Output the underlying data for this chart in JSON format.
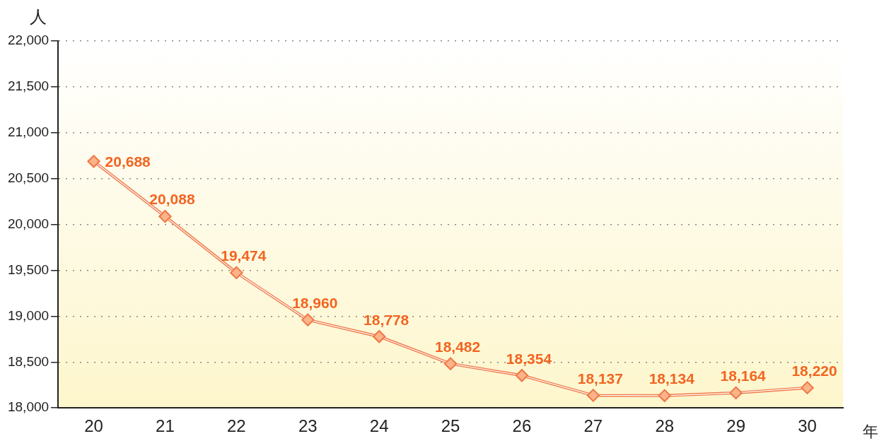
{
  "chart_data": {
    "type": "line",
    "ylabel": "人",
    "xlabel": "年",
    "categories": [
      "20",
      "21",
      "22",
      "23",
      "24",
      "25",
      "26",
      "27",
      "28",
      "29",
      "30"
    ],
    "series": [
      {
        "color": "#f07a4a",
        "values": [
          20688,
          20088,
          19474,
          18960,
          18778,
          18482,
          18354,
          18137,
          18134,
          18164,
          18220
        ],
        "value_labels": [
          "20,688",
          "20,088",
          "19,474",
          "18,960",
          "18,778",
          "18,482",
          "18,354",
          "18,137",
          "18,134",
          "18,164",
          "18,220"
        ]
      }
    ],
    "ylim": [
      18000,
      22000
    ],
    "yticks": [
      {
        "value": 18000,
        "label": "18,000"
      },
      {
        "value": 18500,
        "label": "18,500"
      },
      {
        "value": 19000,
        "label": "19,000"
      },
      {
        "value": 19500,
        "label": "19,500"
      },
      {
        "value": 20000,
        "label": "20,000"
      },
      {
        "value": 20500,
        "label": "20,500"
      },
      {
        "value": 21000,
        "label": "21,000"
      },
      {
        "value": 21500,
        "label": "21,500"
      },
      {
        "value": 22000,
        "label": "22,000"
      }
    ],
    "grid": "y",
    "marker": "diamond",
    "line_style": "solid",
    "legend": false
  }
}
